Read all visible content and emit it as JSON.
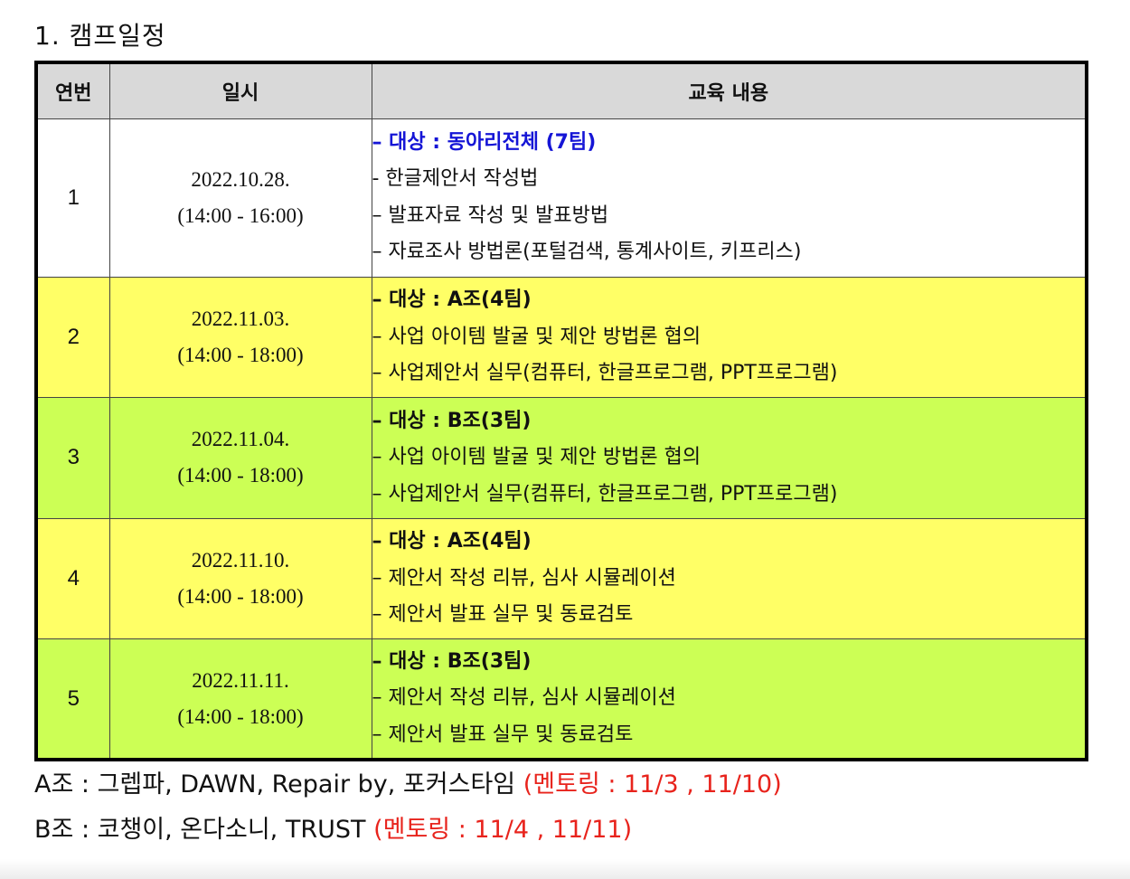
{
  "title": "1. 캠프일정",
  "table": {
    "headers": [
      "연번",
      "일시",
      "교육 내용"
    ],
    "rows": [
      {
        "num": "1",
        "date": "2022.10.28.",
        "time": "(14:00 - 16:00)",
        "target": "– 대상 : 동아리전체 (7팀)",
        "items": [
          "- 한글제안서 작성법",
          "– 발표자료 작성 및 발표방법",
          "– 자료조사 방법론(포털검색, 통계사이트, 키프리스)"
        ]
      },
      {
        "num": "2",
        "date": "2022.11.03.",
        "time": "(14:00 - 18:00)",
        "target": "– 대상 : A조(4팀)",
        "items": [
          "– 사업 아이템 발굴 및 제안 방법론 협의",
          "– 사업제안서 실무(컴퓨터, 한글프로그램, PPT프로그램)"
        ]
      },
      {
        "num": "3",
        "date": "2022.11.04.",
        "time": "(14:00 - 18:00)",
        "target": "– 대상 : B조(3팀)",
        "items": [
          "– 사업 아이템 발굴 및 제안 방법론 협의",
          "– 사업제안서 실무(컴퓨터, 한글프로그램, PPT프로그램)"
        ]
      },
      {
        "num": "4",
        "date": "2022.11.10.",
        "time": "(14:00 - 18:00)",
        "target": "– 대상 : A조(4팀)",
        "items": [
          "– 제안서 작성 리뷰, 심사 시뮬레이션",
          "– 제안서 발표 실무 및 동료검토"
        ]
      },
      {
        "num": "5",
        "date": "2022.11.11.",
        "time": "(14:00 - 18:00)",
        "target": "– 대상 : B조(3팀)",
        "items": [
          "– 제안서 작성 리뷰, 심사 시뮬레이션",
          "– 제안서 발표 실무 및 동료검토"
        ]
      }
    ]
  },
  "footer": {
    "a_group": "A조 : 그렙파, DAWN, Repair by, 포커스타임",
    "a_mentor": "(멘토링 : 11/3 , 11/10)",
    "b_group": "B조 : 코챙이, 온다소니, TRUST",
    "b_mentor": "(멘토링 : 11/4 , 11/11)"
  },
  "colors": {
    "white_row": "#ffffff",
    "yellow_row": "#ffff66",
    "green_row": "#ccff55",
    "header_bg": "#d9d9d9",
    "target_blue": "#1515d6",
    "mentor_red": "#e8231c"
  }
}
